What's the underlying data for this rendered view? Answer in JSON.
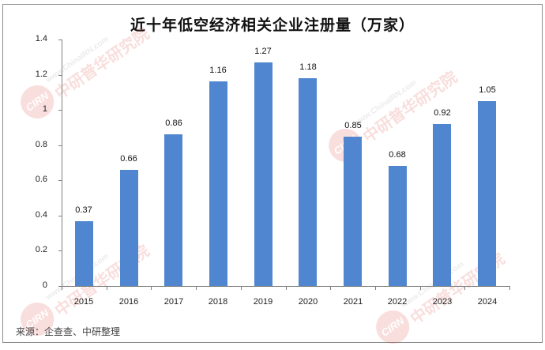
{
  "chart_data": {
    "type": "bar",
    "title": "近十年低空经济相关企业注册量（万家）",
    "categories": [
      "2015",
      "2016",
      "2017",
      "2018",
      "2019",
      "2020",
      "2021",
      "2022",
      "2023",
      "2024"
    ],
    "values": [
      0.37,
      0.66,
      0.86,
      1.16,
      1.27,
      1.18,
      0.85,
      0.68,
      0.92,
      1.05
    ],
    "data_labels": [
      "0.37",
      "0.66",
      "0.86",
      "1.16",
      "1.27",
      "1.18",
      "0.85",
      "0.68",
      "0.92",
      "1.05"
    ],
    "xlabel": "",
    "ylabel": "",
    "ylim": [
      0,
      1.4
    ],
    "yticks": [
      "0",
      "0.2",
      "0.4",
      "0.6",
      "0.8",
      "1",
      "1.2",
      "1.4"
    ],
    "grid": false,
    "legend": null,
    "bar_color": "#4f86cf"
  },
  "footer": {
    "source": "来源：企查查、中研整理"
  },
  "watermark": {
    "logo": "CIRN",
    "text": "中研普华研究院",
    "url": "www.ChinaIRN.com"
  }
}
